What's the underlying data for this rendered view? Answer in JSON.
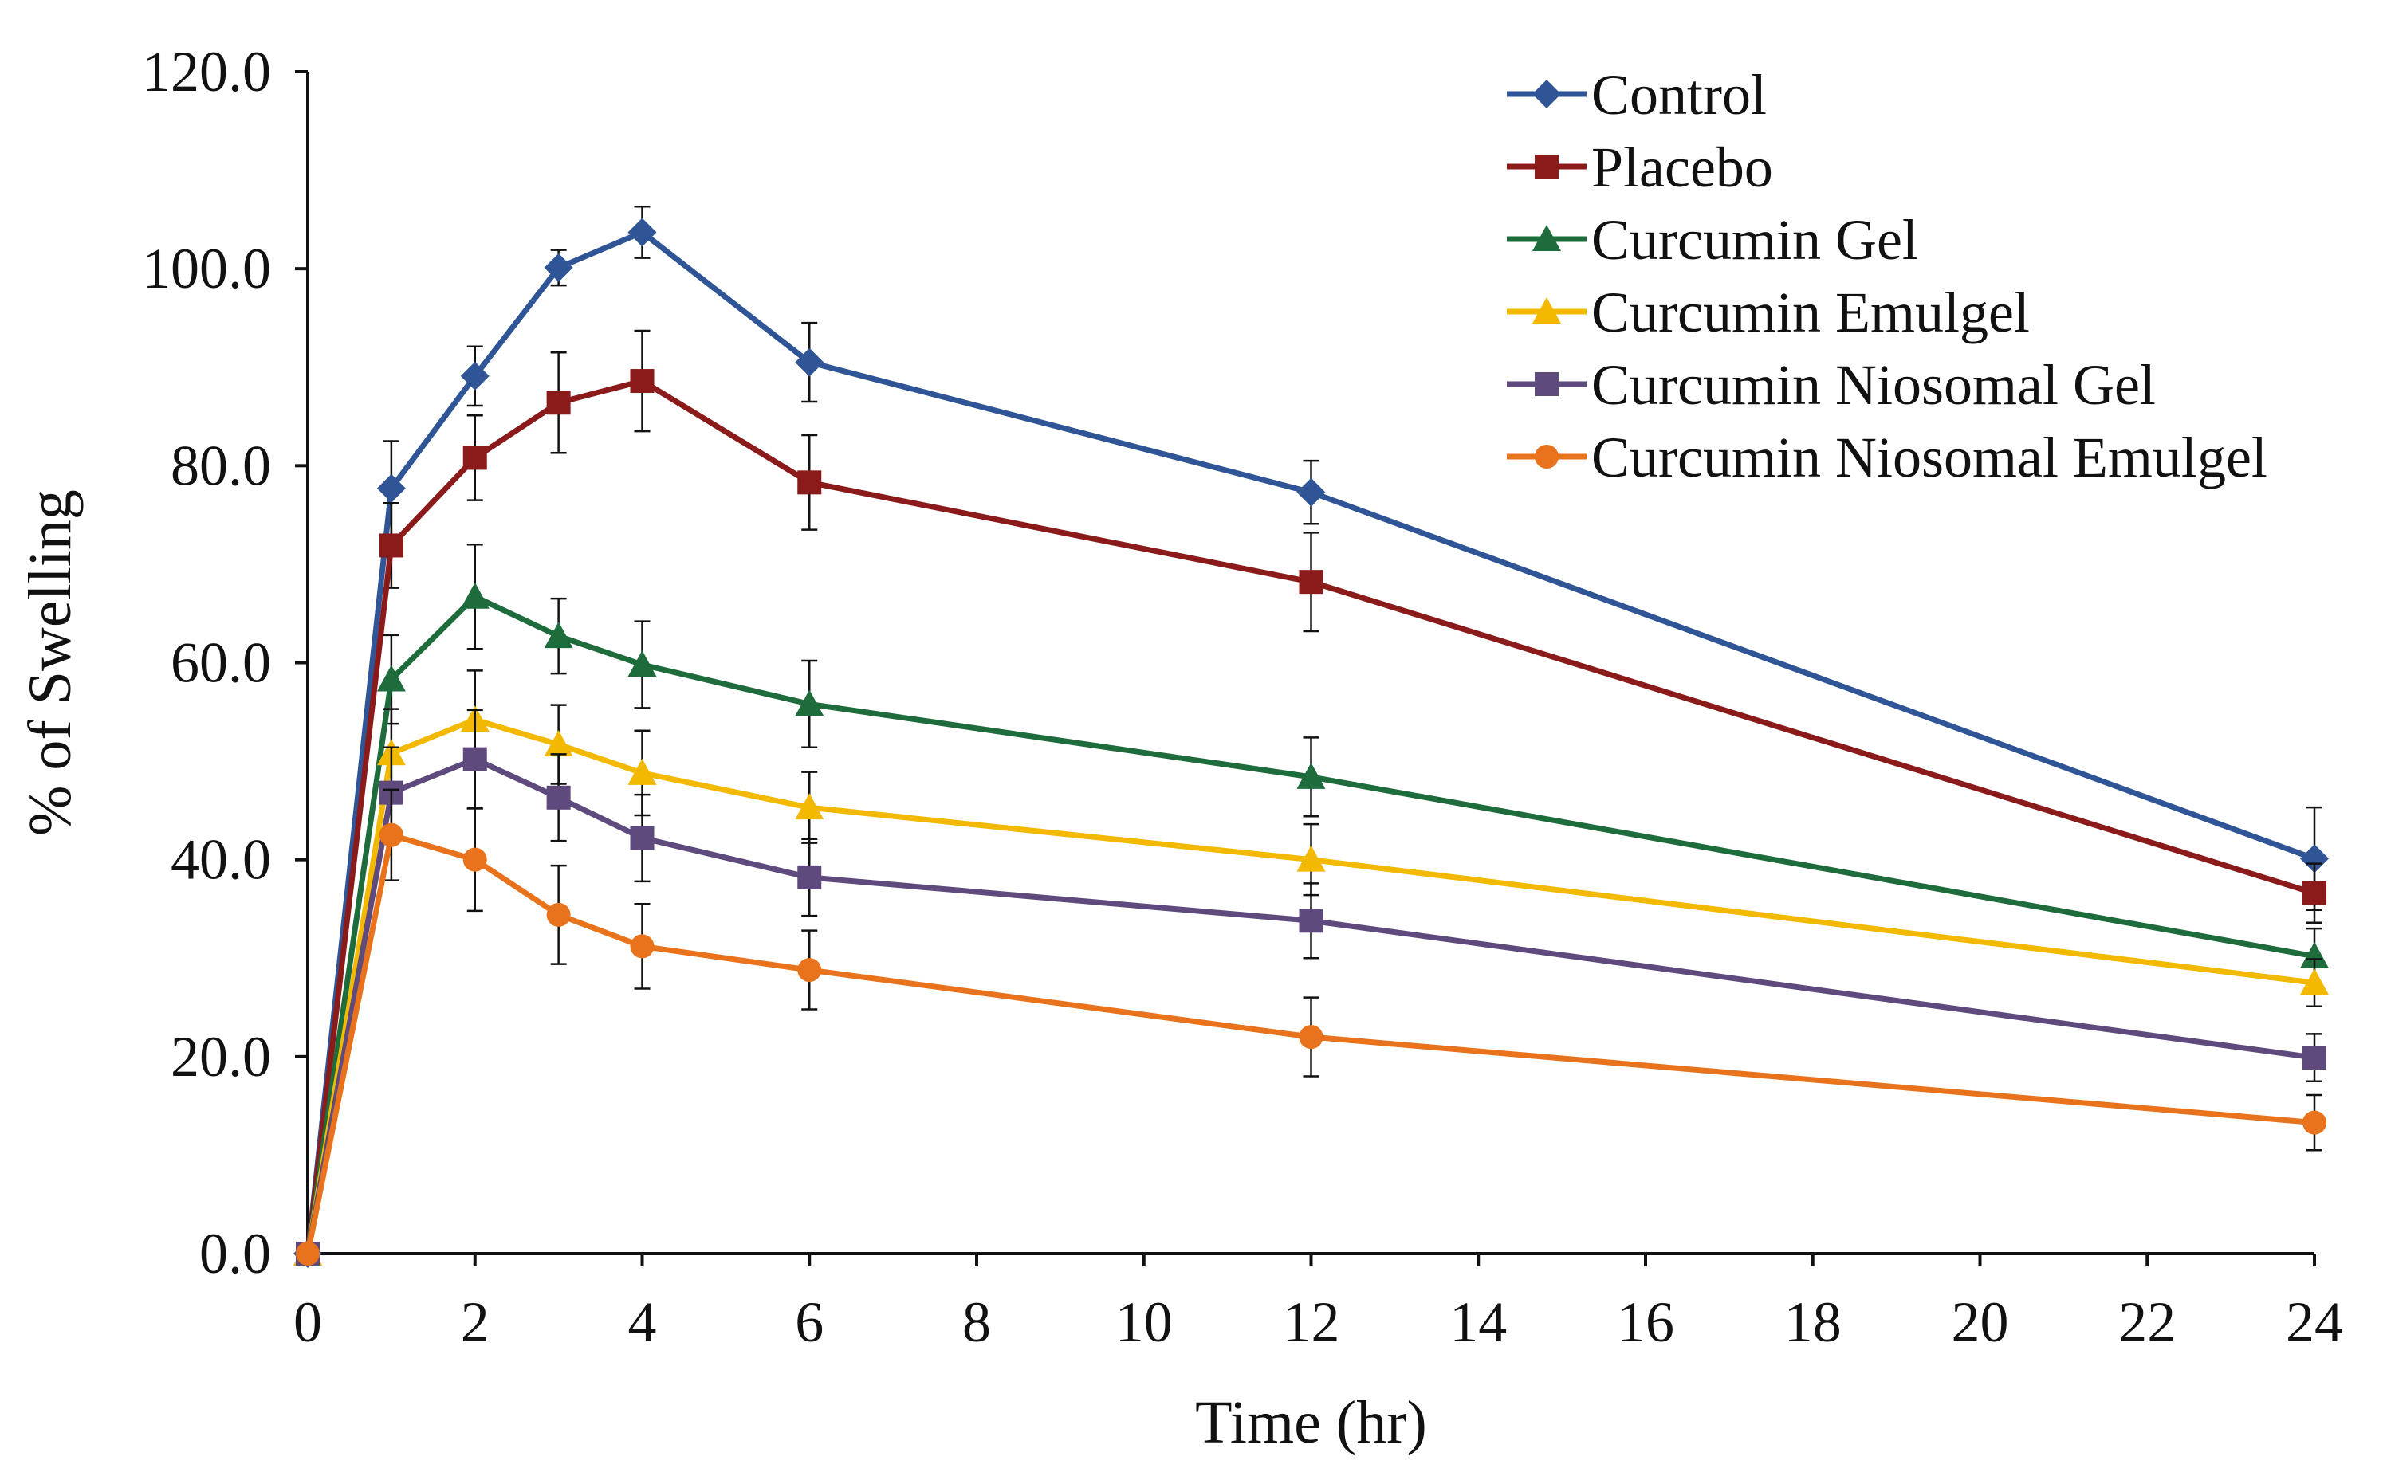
{
  "chart_data": {
    "type": "line",
    "title": "",
    "xlabel": "Time (hr)",
    "ylabel": "% of Swelling",
    "xlim": [
      0,
      24
    ],
    "ylim": [
      0,
      120
    ],
    "x_ticks": [
      0,
      2,
      4,
      6,
      8,
      10,
      12,
      14,
      16,
      18,
      20,
      22,
      24
    ],
    "y_ticks": [
      0,
      20,
      40,
      60,
      80,
      100,
      120
    ],
    "x_tick_labels": [
      "0",
      "2",
      "4",
      "6",
      "8",
      "10",
      "12",
      "14",
      "16",
      "18",
      "20",
      "22",
      "24"
    ],
    "y_tick_labels": [
      "0.0",
      "20.0",
      "40.0",
      "60.0",
      "80.0",
      "100.0",
      "120.0"
    ],
    "grid": false,
    "legend_position": "top-right",
    "x": [
      0,
      1,
      2,
      3,
      4,
      6,
      12,
      24
    ],
    "series": [
      {
        "name": "Control",
        "color": "#2F5597",
        "marker": "diamond",
        "values": [
          0,
          77.7,
          89.1,
          100.1,
          103.7,
          90.5,
          77.3,
          40.1
        ],
        "errors": [
          0,
          4.8,
          3.0,
          1.8,
          2.6,
          4.0,
          3.2,
          5.2
        ]
      },
      {
        "name": "Placebo",
        "color": "#8B1A1A",
        "marker": "square",
        "values": [
          0,
          71.9,
          80.8,
          86.4,
          88.6,
          78.3,
          68.2,
          36.6
        ],
        "errors": [
          0,
          4.3,
          4.3,
          5.1,
          5.1,
          4.8,
          5.0,
          3.0
        ]
      },
      {
        "name": "Curcumin Gel",
        "color": "#1E6B3C",
        "marker": "triangle",
        "values": [
          0,
          58.3,
          66.7,
          62.7,
          59.8,
          55.8,
          48.4,
          30.2
        ],
        "errors": [
          0,
          4.5,
          5.3,
          3.8,
          4.4,
          4.4,
          4.0,
          2.8
        ]
      },
      {
        "name": "Curcumin Emulgel",
        "color": "#F2B900",
        "marker": "triangle",
        "values": [
          0,
          50.8,
          54.2,
          51.7,
          48.8,
          45.3,
          40.0,
          27.5
        ],
        "errors": [
          0,
          4.5,
          5.0,
          4.0,
          4.3,
          3.6,
          3.6,
          2.4
        ]
      },
      {
        "name": "Curcumin Niosomal Gel",
        "color": "#5E4A7D",
        "marker": "square",
        "values": [
          0,
          46.8,
          50.2,
          46.3,
          42.2,
          38.2,
          33.8,
          19.9
        ],
        "errors": [
          0,
          4.6,
          5.0,
          4.4,
          4.4,
          3.9,
          3.8,
          2.4
        ]
      },
      {
        "name": "Curcumin Niosomal Emulgel",
        "color": "#E8731C",
        "marker": "circle",
        "values": [
          0,
          42.5,
          40.0,
          34.4,
          31.2,
          28.8,
          22.0,
          13.3
        ],
        "errors": [
          0,
          4.6,
          5.2,
          5.0,
          4.3,
          4.0,
          4.0,
          2.8
        ]
      }
    ]
  }
}
